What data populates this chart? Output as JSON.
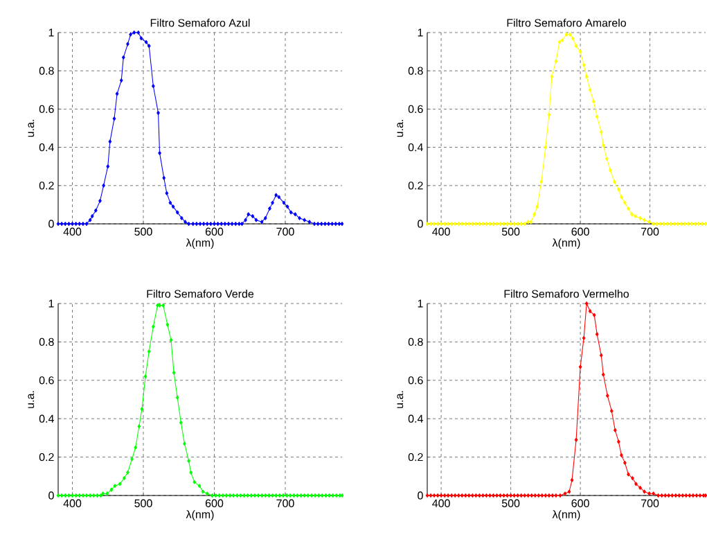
{
  "chart_data": [
    {
      "type": "line",
      "title": "Filtro Semaforo Azul",
      "xlabel": "λ(nm)",
      "ylabel": "u.a.",
      "xlim": [
        380,
        780
      ],
      "ylim": [
        0,
        1
      ],
      "xticks": [
        400,
        500,
        600,
        700
      ],
      "yticks": [
        0,
        0.2,
        0.4,
        0.6,
        0.8,
        1
      ],
      "grid": true,
      "marker": "diamond",
      "line_style": "solid",
      "x": [
        380,
        385,
        390,
        395,
        400,
        405,
        410,
        415,
        420,
        425,
        428,
        433,
        439,
        444,
        450,
        453,
        459,
        463,
        469,
        472,
        478,
        482,
        487,
        493,
        497,
        504,
        508,
        514,
        521,
        523,
        529,
        533,
        538,
        542,
        548,
        554,
        559,
        564,
        570,
        575,
        580,
        585,
        590,
        595,
        600,
        605,
        610,
        615,
        620,
        625,
        630,
        635,
        639,
        644,
        648,
        654,
        659,
        667,
        672,
        678,
        682,
        687,
        691,
        698,
        703,
        708,
        714,
        720,
        727,
        734,
        741,
        746,
        751,
        756,
        761,
        766,
        771,
        776,
        780
      ],
      "series": [
        {
          "color": "#0000ff",
          "values": [
            0,
            0,
            0,
            0,
            0,
            0,
            0,
            0,
            0,
            0.02,
            0.04,
            0.07,
            0.12,
            0.2,
            0.3,
            0.43,
            0.55,
            0.68,
            0.75,
            0.87,
            0.94,
            0.99,
            1.0,
            1.0,
            0.97,
            0.95,
            0.93,
            0.72,
            0.58,
            0.37,
            0.24,
            0.16,
            0.11,
            0.09,
            0.06,
            0.03,
            0.01,
            0,
            0,
            0,
            0,
            0,
            0,
            0,
            0,
            0,
            0,
            0,
            0,
            0,
            0,
            0,
            0,
            0.02,
            0.05,
            0.04,
            0.02,
            0.01,
            0.03,
            0.08,
            0.11,
            0.15,
            0.14,
            0.11,
            0.09,
            0.06,
            0.05,
            0.03,
            0.02,
            0.01,
            0,
            0,
            0,
            0,
            0,
            0,
            0,
            0,
            0
          ]
        }
      ]
    },
    {
      "type": "line",
      "title": "Filtro Semaforo Amarelo",
      "xlabel": "λ(nm)",
      "ylabel": "u.a.",
      "xlim": [
        380,
        780
      ],
      "ylim": [
        0,
        1
      ],
      "xticks": [
        400,
        500,
        600,
        700
      ],
      "yticks": [
        0,
        0.2,
        0.4,
        0.6,
        0.8,
        1
      ],
      "grid": true,
      "marker": "diamond",
      "line_style": "solid",
      "x": [
        380,
        385,
        390,
        395,
        400,
        405,
        410,
        415,
        420,
        425,
        430,
        435,
        440,
        445,
        450,
        455,
        460,
        465,
        470,
        475,
        480,
        485,
        490,
        495,
        500,
        505,
        510,
        515,
        520,
        525,
        529,
        534,
        538,
        544,
        550,
        555,
        559,
        565,
        570,
        574,
        580,
        585,
        589,
        594,
        600,
        605,
        609,
        614,
        619,
        624,
        630,
        633,
        638,
        643,
        649,
        655,
        659,
        664,
        669,
        674,
        679,
        686,
        692,
        699,
        705,
        710,
        715,
        720,
        725,
        730,
        735,
        740,
        745,
        750,
        755,
        760,
        765,
        770,
        775,
        780
      ],
      "series": [
        {
          "color": "#ffff00",
          "values": [
            0,
            0,
            0,
            0,
            0,
            0,
            0,
            0,
            0,
            0,
            0,
            0,
            0,
            0,
            0,
            0,
            0,
            0,
            0,
            0,
            0,
            0,
            0,
            0,
            0,
            0,
            0,
            0,
            0,
            0.01,
            0.01,
            0.05,
            0.09,
            0.22,
            0.4,
            0.57,
            0.77,
            0.85,
            0.95,
            0.96,
            0.99,
            0.99,
            0.97,
            0.93,
            0.9,
            0.83,
            0.77,
            0.7,
            0.64,
            0.56,
            0.48,
            0.41,
            0.34,
            0.28,
            0.22,
            0.18,
            0.14,
            0.11,
            0.08,
            0.05,
            0.04,
            0.03,
            0.02,
            0.01,
            0,
            0,
            0,
            0,
            0,
            0,
            0,
            0,
            0,
            0,
            0,
            0,
            0,
            0,
            0,
            0
          ]
        }
      ]
    },
    {
      "type": "line",
      "title": "Filtro Semaforo Verde",
      "xlabel": "λ(nm)",
      "ylabel": "u.a.",
      "xlim": [
        380,
        780
      ],
      "ylim": [
        0,
        1
      ],
      "xticks": [
        400,
        500,
        600,
        700
      ],
      "yticks": [
        0,
        0.2,
        0.4,
        0.6,
        0.8,
        1
      ],
      "grid": true,
      "marker": "diamond",
      "line_style": "solid",
      "x": [
        380,
        385,
        390,
        395,
        400,
        405,
        410,
        415,
        420,
        425,
        430,
        435,
        440,
        443,
        449,
        455,
        460,
        467,
        473,
        478,
        484,
        489,
        494,
        498,
        503,
        508,
        514,
        520,
        523,
        528,
        534,
        539,
        543,
        548,
        553,
        558,
        564,
        567,
        572,
        579,
        584,
        590,
        597,
        602,
        607,
        612,
        617,
        622,
        627,
        632,
        637,
        642,
        647,
        652,
        657,
        662,
        667,
        672,
        677,
        682,
        687,
        692,
        697,
        702,
        707,
        712,
        717,
        722,
        727,
        732,
        737,
        742,
        747,
        752,
        757,
        762,
        767,
        772,
        777,
        780
      ],
      "series": [
        {
          "color": "#00ff00",
          "values": [
            0,
            0,
            0,
            0,
            0,
            0,
            0,
            0,
            0,
            0,
            0,
            0,
            0,
            0.01,
            0.01,
            0.03,
            0.05,
            0.06,
            0.09,
            0.12,
            0.19,
            0.25,
            0.36,
            0.45,
            0.62,
            0.75,
            0.88,
            0.99,
            0.99,
            0.99,
            0.89,
            0.81,
            0.64,
            0.51,
            0.38,
            0.27,
            0.18,
            0.12,
            0.07,
            0.05,
            0.02,
            0.01,
            0,
            0,
            0,
            0,
            0,
            0,
            0,
            0,
            0,
            0,
            0,
            0,
            0,
            0,
            0,
            0,
            0,
            0,
            0,
            0,
            0,
            0,
            0,
            0,
            0,
            0,
            0,
            0,
            0,
            0,
            0,
            0,
            0,
            0,
            0,
            0,
            0,
            0
          ]
        }
      ]
    },
    {
      "type": "line",
      "title": "Filtro Semaforo Vermelho",
      "xlabel": "λ(nm)",
      "ylabel": "u.a.",
      "xlim": [
        380,
        780
      ],
      "ylim": [
        0,
        1
      ],
      "xticks": [
        400,
        500,
        600,
        700
      ],
      "yticks": [
        0,
        0.2,
        0.4,
        0.6,
        0.8,
        1
      ],
      "grid": true,
      "marker": "diamond",
      "line_style": "solid",
      "x": [
        380,
        385,
        390,
        395,
        400,
        405,
        410,
        415,
        420,
        425,
        430,
        435,
        440,
        445,
        450,
        455,
        460,
        465,
        470,
        475,
        480,
        485,
        490,
        495,
        500,
        505,
        510,
        515,
        520,
        525,
        530,
        535,
        540,
        545,
        550,
        555,
        560,
        565,
        571,
        578,
        584,
        588,
        594,
        600,
        605,
        609,
        614,
        620,
        624,
        630,
        633,
        639,
        645,
        650,
        655,
        659,
        664,
        669,
        675,
        680,
        686,
        692,
        699,
        705,
        712,
        717,
        722,
        727,
        732,
        737,
        742,
        747,
        752,
        757,
        762,
        767,
        772,
        777,
        780
      ],
      "series": [
        {
          "color": "#ff0000",
          "values": [
            0,
            0,
            0,
            0,
            0,
            0,
            0,
            0,
            0,
            0,
            0,
            0,
            0,
            0,
            0,
            0,
            0,
            0,
            0,
            0,
            0,
            0,
            0,
            0,
            0,
            0,
            0,
            0,
            0,
            0,
            0,
            0,
            0,
            0,
            0,
            0,
            0,
            0,
            0,
            0.01,
            0.02,
            0.08,
            0.29,
            0.67,
            0.82,
            1.0,
            0.96,
            0.94,
            0.84,
            0.73,
            0.63,
            0.52,
            0.44,
            0.34,
            0.28,
            0.21,
            0.17,
            0.11,
            0.09,
            0.06,
            0.04,
            0.02,
            0.01,
            0.01,
            0,
            0,
            0,
            0,
            0,
            0,
            0,
            0,
            0,
            0,
            0,
            0,
            0,
            0,
            0
          ]
        }
      ]
    }
  ]
}
